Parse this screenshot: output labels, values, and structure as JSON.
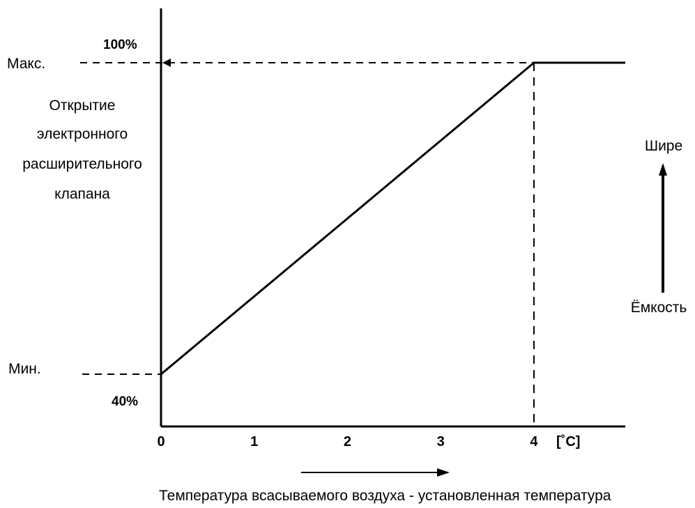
{
  "chart_data": {
    "type": "line",
    "title": "",
    "xlabel": "Температура всасываемого воздуха - установленная температура",
    "x_unit": "[˚C]",
    "x_ticks": [
      "0",
      "1",
      "2",
      "3",
      "4"
    ],
    "xlim": [
      0,
      4.98
    ],
    "ylim": [
      40,
      100
    ],
    "ylabel_lines": [
      "Открытие",
      "электронного",
      "расширительного",
      "клапана"
    ],
    "y_top_label": "Макс.",
    "y_top_value_label": "100%",
    "y_bottom_label": "Мин.",
    "y_bottom_value_label": "40%",
    "right_top_label": "Шире",
    "right_bottom_label": "Ёмкость",
    "series": [
      {
        "x": [
          0,
          4,
          4.98
        ],
        "y": [
          40,
          100,
          100
        ]
      }
    ]
  },
  "colors": {
    "ink": "#000000",
    "background": "#ffffff"
  }
}
